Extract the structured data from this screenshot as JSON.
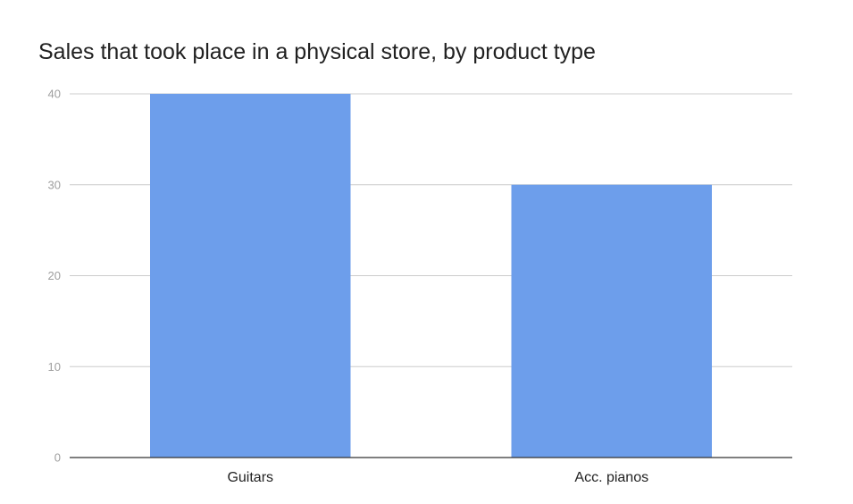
{
  "chart_data": {
    "type": "bar",
    "title": "Sales that took place in a physical store, by product type",
    "xlabel": "",
    "ylabel": "",
    "categories": [
      "Guitars",
      "Acc. pianos"
    ],
    "values": [
      40,
      30
    ],
    "ylim": [
      0,
      40
    ],
    "yticks": [
      0,
      10,
      20,
      30,
      40
    ],
    "grid": true,
    "legend": "none",
    "colors": {
      "bar": "#6d9eeb",
      "grid": "#cccccc",
      "axis": "#333333",
      "tick_label": "#9e9e9e",
      "category_label": "#222222",
      "title": "#212121"
    }
  }
}
